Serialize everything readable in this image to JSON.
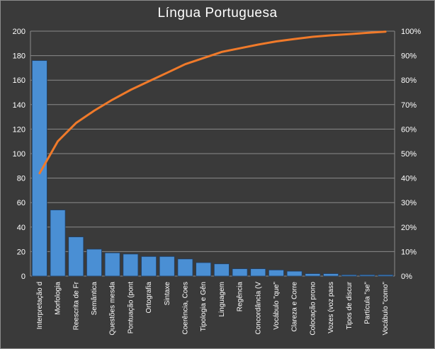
{
  "chart_data": {
    "type": "bar",
    "title": "Língua Portuguesa",
    "categories": [
      "Interpretação d",
      "Morfologia",
      "Reescrita de Fr",
      "Semântica",
      "Questões mesda",
      "Pontuação (pont",
      "Ortografia",
      "Sintaxe",
      "Coerência, Coes",
      "Tipologia e Gên",
      "Linguagem",
      "Regência",
      "Concordância (V",
      "Vocábulo \"que\"",
      "Clareza e Corre",
      "Colocação prono",
      "Vozes (voz pass",
      "Tipos de discur",
      "Partícula \"se\"",
      "Vocábulo \"como\""
    ],
    "series": [
      {
        "type": "bar",
        "color": "#4a8fd4",
        "values": [
          176,
          54,
          32,
          22,
          19,
          18,
          16,
          16,
          14,
          11,
          10,
          6,
          6,
          5,
          4,
          2,
          2,
          1,
          1,
          1
        ]
      },
      {
        "type": "line",
        "axis": "right",
        "color": "#f07a2a",
        "values": [
          42,
          55,
          62.5,
          67.5,
          72,
          76,
          79.5,
          83,
          86.5,
          89,
          91.5,
          93,
          94.5,
          95.8,
          96.8,
          97.7,
          98.3,
          98.8,
          99.3,
          99.8
        ]
      }
    ],
    "y_left": {
      "min": 0,
      "max": 200,
      "step": 20,
      "ticks": [
        "0",
        "20",
        "40",
        "60",
        "80",
        "100",
        "120",
        "140",
        "160",
        "180",
        "200"
      ]
    },
    "y_right": {
      "min": 0,
      "max": 100,
      "step": 10,
      "ticks": [
        "0%",
        "10%",
        "20%",
        "30%",
        "40%",
        "50%",
        "60%",
        "70%",
        "80%",
        "90%",
        "100%"
      ]
    },
    "grid": true,
    "legend": "none",
    "colors": {
      "background": "#3a3a3a",
      "grid": "#8a8a8a",
      "bar": "#4a8fd4",
      "line": "#f07a2a",
      "text": "#ffffff"
    }
  }
}
